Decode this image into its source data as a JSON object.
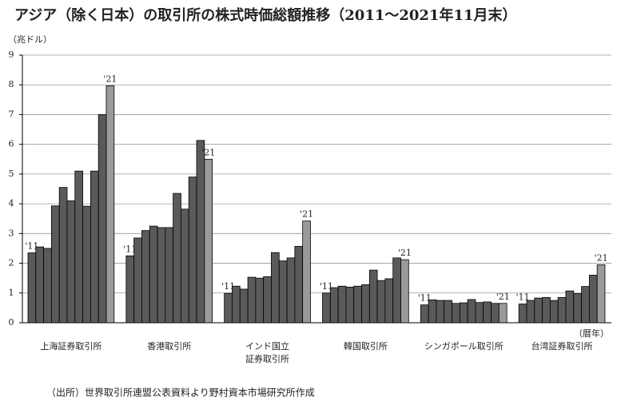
{
  "chart_data": {
    "type": "bar",
    "title": "アジア（除く日本）の取引所の株式時価総額推移（2011～2021年11月末）",
    "y_unit": "（兆ドル）",
    "x_unit": "（暦年）",
    "source": "（出所）世界取引所連盟公表資料より野村資本市場研究所作成",
    "first_label": "'11",
    "last_label": "'21",
    "color": "#5a5a5a",
    "last_color": "#9a9a9a",
    "ylim": [
      0,
      9
    ],
    "yticks": [
      0,
      1,
      2,
      3,
      4,
      5,
      6,
      7,
      8,
      9
    ],
    "grid": true,
    "groups": [
      {
        "name": [
          "上海証券取引所"
        ],
        "values": [
          2.35,
          2.55,
          2.5,
          3.93,
          4.55,
          4.1,
          5.1,
          3.92,
          5.1,
          7.0,
          7.97
        ]
      },
      {
        "name": [
          "香港取引所"
        ],
        "values": [
          2.25,
          2.85,
          3.1,
          3.25,
          3.2,
          3.2,
          4.35,
          3.82,
          4.9,
          6.13,
          5.5
        ]
      },
      {
        "name": [
          "インド国立",
          "証券取引所"
        ],
        "values": [
          0.99,
          1.23,
          1.13,
          1.53,
          1.5,
          1.55,
          2.36,
          2.08,
          2.18,
          2.57,
          3.42
        ]
      },
      {
        "name": [
          "韓国取引所"
        ],
        "values": [
          1.0,
          1.18,
          1.23,
          1.2,
          1.23,
          1.28,
          1.77,
          1.42,
          1.48,
          2.18,
          2.12
        ]
      },
      {
        "name": [
          "シンガポール取引所"
        ],
        "values": [
          0.6,
          0.77,
          0.75,
          0.75,
          0.65,
          0.67,
          0.78,
          0.68,
          0.7,
          0.65,
          0.65
        ]
      },
      {
        "name": [
          "台湾証券取引所"
        ],
        "values": [
          0.63,
          0.75,
          0.83,
          0.85,
          0.75,
          0.85,
          1.07,
          0.98,
          1.22,
          1.6,
          1.95
        ]
      }
    ]
  }
}
